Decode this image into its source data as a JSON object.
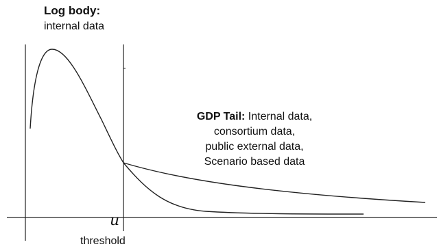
{
  "log_body": {
    "title": "Log body:",
    "subtitle": "internal  data"
  },
  "gdp_tail": {
    "title": "GDP Tail:",
    "line1_rest": " Internal data,",
    "line2": "consortium data,",
    "line3": "public external data,",
    "line4": "Scenario based data"
  },
  "threshold": {
    "symbol": "u",
    "label": "threshold"
  }
}
